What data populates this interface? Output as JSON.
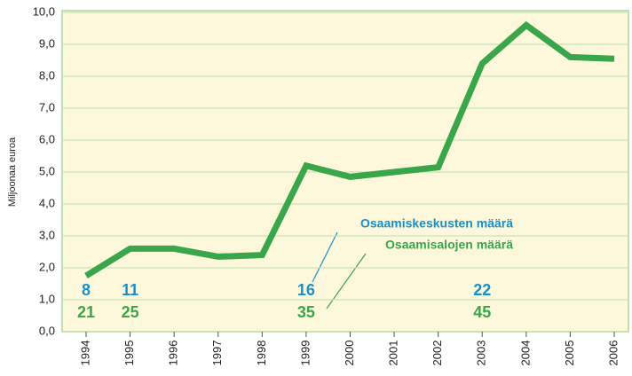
{
  "chart_data": {
    "type": "line",
    "y_label": "Miljoonaa euroa",
    "categories": [
      "1994",
      "1995",
      "1996",
      "1997",
      "1998",
      "1999",
      "2000",
      "2001",
      "2002",
      "2003",
      "2004",
      "2005",
      "2006"
    ],
    "series": [
      {
        "color": "#3aa64a",
        "values": [
          1.75,
          2.6,
          2.6,
          2.35,
          2.4,
          5.2,
          4.85,
          5.0,
          5.15,
          8.4,
          9.6,
          8.6,
          8.55
        ]
      }
    ],
    "ylim": [
      0,
      10
    ],
    "yticks": [
      {
        "value": 0,
        "label": "0,0"
      },
      {
        "value": 1,
        "label": "1,0"
      },
      {
        "value": 2,
        "label": "2,0"
      },
      {
        "value": 3,
        "label": "3,0"
      },
      {
        "value": 4,
        "label": "4,0"
      },
      {
        "value": 5,
        "label": "5,0"
      },
      {
        "value": 6,
        "label": "6,0"
      },
      {
        "value": 7,
        "label": "7,0"
      },
      {
        "value": 8,
        "label": "8,0"
      },
      {
        "value": 9,
        "label": "9,0"
      },
      {
        "value": 10,
        "label": "10,0"
      }
    ],
    "grid": true,
    "annotations": [
      {
        "label": "Osaamiskeskusten määrä",
        "color": "#1a8fc9",
        "years": [
          "1994",
          "1995",
          "1999",
          "2003"
        ],
        "values": [
          8,
          11,
          16,
          22
        ]
      },
      {
        "label": "Osaamisalojen määrä",
        "color": "#3aa64a",
        "years": [
          "1994",
          "1995",
          "1999",
          "2003"
        ],
        "values": [
          21,
          25,
          35,
          45
        ]
      }
    ]
  }
}
